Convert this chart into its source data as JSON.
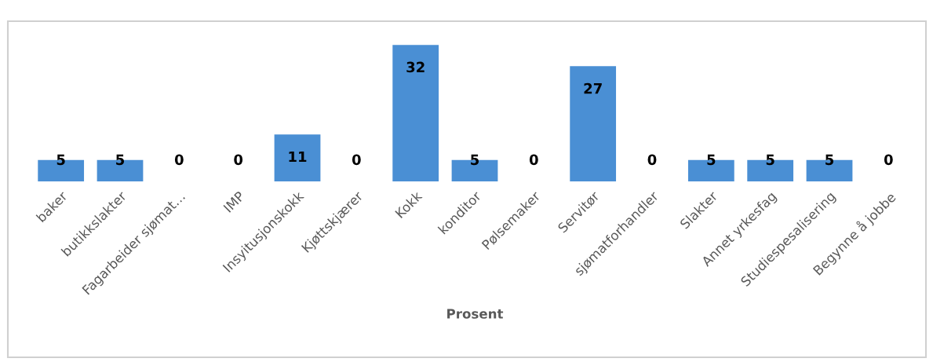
{
  "chart_data": {
    "type": "bar",
    "xlabel": "Prosent",
    "categories": [
      "baker",
      "butikkslakter",
      "Fagarbeider sjømat…",
      "IMP",
      "Insyitusjonskokk",
      "Kjøttskjærer",
      "Kokk",
      "konditor",
      "Pølsemaker",
      "Servitør",
      "sjømatforhandler",
      "Slakter",
      "Annet yrkesfag",
      "Studiespesalisering",
      "Begynne å jobbe"
    ],
    "values": [
      5,
      5,
      0,
      0,
      11,
      0,
      32,
      5,
      0,
      27,
      0,
      5,
      5,
      5,
      0
    ],
    "color": "#4a8fd4",
    "data_labels": true,
    "ylim": [
      0,
      37
    ],
    "tick_labels": "x",
    "grid": false
  }
}
